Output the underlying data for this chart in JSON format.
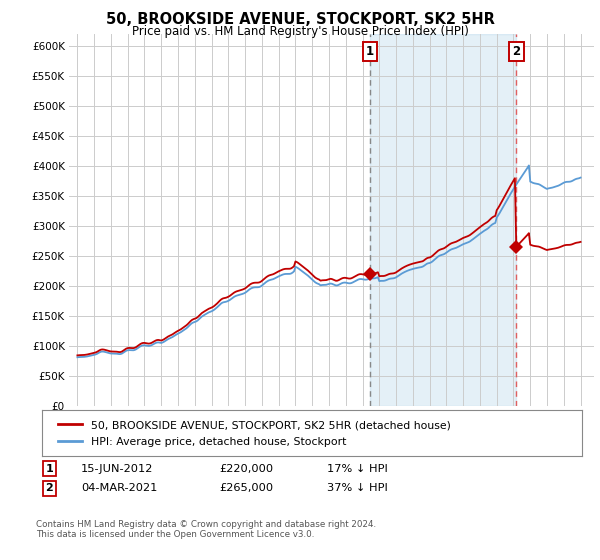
{
  "title": "50, BROOKSIDE AVENUE, STOCKPORT, SK2 5HR",
  "subtitle": "Price paid vs. HM Land Registry's House Price Index (HPI)",
  "ylim": [
    0,
    620000
  ],
  "yticks": [
    0,
    50000,
    100000,
    150000,
    200000,
    250000,
    300000,
    350000,
    400000,
    450000,
    500000,
    550000,
    600000
  ],
  "hpi_color": "#5b9bd5",
  "price_color": "#c00000",
  "bg_color": "#ffffff",
  "fill_color": "#ddeeff",
  "grid_color": "#cccccc",
  "vline1_color": "#888888",
  "vline2_color": "#e06060",
  "legend_label_red": "50, BROOKSIDE AVENUE, STOCKPORT, SK2 5HR (detached house)",
  "legend_label_blue": "HPI: Average price, detached house, Stockport",
  "sale1_label": "1",
  "sale1_date": "15-JUN-2012",
  "sale1_price": "£220,000",
  "sale1_hpi": "17% ↓ HPI",
  "sale2_label": "2",
  "sale2_date": "04-MAR-2021",
  "sale2_price": "£265,000",
  "sale2_hpi": "37% ↓ HPI",
  "footnote": "Contains HM Land Registry data © Crown copyright and database right 2024.\nThis data is licensed under the Open Government Licence v3.0.",
  "sale1_year": 2012.45,
  "sale2_year": 2021.17,
  "xlim_left": 1994.5,
  "xlim_right": 2025.8
}
